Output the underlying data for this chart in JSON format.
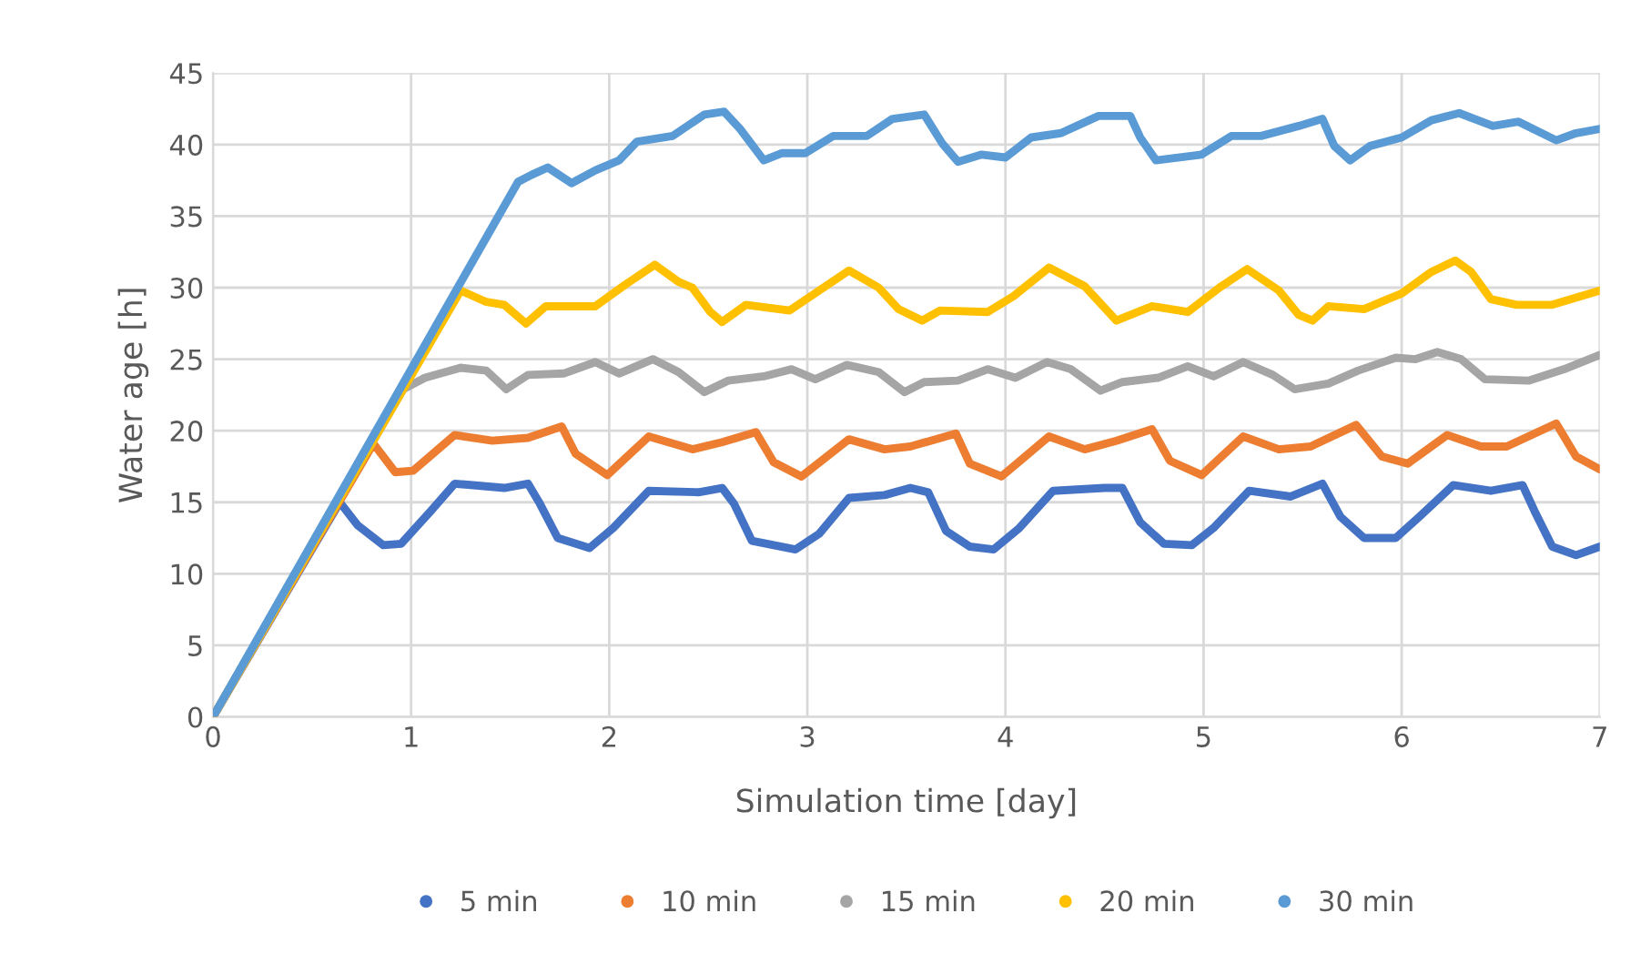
{
  "chart_data": {
    "type": "line",
    "xlabel": "Simulation time [day]",
    "ylabel": "Water age [h]",
    "xlim": [
      0,
      7
    ],
    "xticks": [
      0,
      1,
      2,
      3,
      4,
      5,
      6,
      7
    ],
    "ylim": [
      0,
      45
    ],
    "yticks": [
      0,
      5,
      10,
      15,
      20,
      25,
      30,
      35,
      40,
      45
    ],
    "grid": true,
    "legend": "bottom",
    "marker": "none",
    "line_style": "solid",
    "series": [
      {
        "name": "5 min",
        "color": "#4472c4",
        "x": [
          0,
          0.64,
          0.73,
          0.86,
          0.95,
          1.1,
          1.22,
          1.47,
          1.59,
          1.65,
          1.74,
          1.9,
          2.02,
          2.2,
          2.45,
          2.57,
          2.63,
          2.72,
          2.94,
          3.06,
          3.21,
          3.39,
          3.52,
          3.61,
          3.7,
          3.82,
          3.94,
          4.07,
          4.24,
          4.5,
          4.59,
          4.68,
          4.8,
          4.94,
          5.05,
          5.23,
          5.44,
          5.6,
          5.69,
          5.81,
          5.97,
          6.09,
          6.26,
          6.45,
          6.61,
          6.67,
          6.76,
          6.88,
          7.0
        ],
        "values": [
          0,
          15.0,
          13.4,
          12.0,
          12.1,
          14.4,
          16.3,
          16.0,
          16.3,
          14.9,
          12.5,
          11.8,
          13.2,
          15.8,
          15.7,
          16.0,
          14.9,
          12.3,
          11.7,
          12.8,
          15.3,
          15.5,
          16.0,
          15.7,
          13.0,
          11.9,
          11.7,
          13.2,
          15.8,
          16.0,
          16.0,
          13.6,
          12.1,
          12.0,
          13.2,
          15.8,
          15.4,
          16.3,
          14.0,
          12.5,
          12.5,
          14.0,
          16.2,
          15.8,
          16.2,
          14.4,
          11.9,
          11.3,
          11.9
        ]
      },
      {
        "name": "10 min",
        "color": "#ed7d31",
        "x": [
          0,
          0.81,
          0.92,
          1.01,
          1.22,
          1.41,
          1.59,
          1.76,
          1.83,
          1.99,
          2.2,
          2.42,
          2.57,
          2.74,
          2.83,
          2.97,
          3.21,
          3.39,
          3.52,
          3.75,
          3.82,
          3.98,
          4.22,
          4.4,
          4.56,
          4.74,
          4.83,
          4.99,
          5.2,
          5.38,
          5.54,
          5.77,
          5.9,
          6.03,
          6.23,
          6.4,
          6.53,
          6.78,
          6.88,
          7.0
        ],
        "values": [
          0,
          19.1,
          17.1,
          17.2,
          19.7,
          19.3,
          19.5,
          20.3,
          18.4,
          16.9,
          19.6,
          18.7,
          19.2,
          19.9,
          17.8,
          16.8,
          19.4,
          18.7,
          18.9,
          19.8,
          17.7,
          16.8,
          19.6,
          18.7,
          19.3,
          20.1,
          17.9,
          16.9,
          19.6,
          18.7,
          18.9,
          20.4,
          18.2,
          17.7,
          19.7,
          18.9,
          18.9,
          20.5,
          18.2,
          17.3
        ]
      },
      {
        "name": "15 min",
        "color": "#a5a5a5",
        "x": [
          0,
          0.96,
          1.07,
          1.25,
          1.38,
          1.48,
          1.59,
          1.77,
          1.93,
          2.05,
          2.22,
          2.35,
          2.48,
          2.6,
          2.78,
          2.92,
          3.04,
          3.2,
          3.36,
          3.49,
          3.59,
          3.76,
          3.91,
          4.05,
          4.21,
          4.33,
          4.48,
          4.59,
          4.77,
          4.92,
          5.05,
          5.2,
          5.35,
          5.46,
          5.63,
          5.78,
          5.97,
          6.07,
          6.18,
          6.3,
          6.42,
          6.64,
          6.82,
          7.0
        ],
        "values": [
          0,
          22.9,
          23.7,
          24.4,
          24.2,
          22.9,
          23.9,
          24.0,
          24.8,
          24.0,
          25.0,
          24.1,
          22.7,
          23.5,
          23.8,
          24.3,
          23.6,
          24.6,
          24.1,
          22.7,
          23.4,
          23.5,
          24.3,
          23.7,
          24.8,
          24.3,
          22.8,
          23.4,
          23.7,
          24.5,
          23.8,
          24.8,
          23.9,
          22.9,
          23.3,
          24.2,
          25.1,
          25.0,
          25.5,
          25.0,
          23.6,
          23.5,
          24.3,
          25.3
        ]
      },
      {
        "name": "20 min",
        "color": "#ffc000",
        "x": [
          0,
          1.25,
          1.38,
          1.47,
          1.58,
          1.68,
          1.93,
          2.08,
          2.23,
          2.35,
          2.42,
          2.51,
          2.57,
          2.69,
          2.91,
          3.06,
          3.21,
          3.36,
          3.46,
          3.58,
          3.67,
          3.91,
          4.04,
          4.22,
          4.4,
          4.56,
          4.74,
          4.92,
          5.08,
          5.22,
          5.38,
          5.48,
          5.55,
          5.63,
          5.81,
          6.0,
          6.15,
          6.27,
          6.35,
          6.45,
          6.58,
          6.76,
          7.0
        ],
        "values": [
          0,
          29.8,
          29.0,
          28.8,
          27.5,
          28.7,
          28.7,
          30.2,
          31.6,
          30.4,
          30.0,
          28.3,
          27.6,
          28.8,
          28.4,
          29.8,
          31.2,
          30.0,
          28.5,
          27.7,
          28.4,
          28.3,
          29.4,
          31.4,
          30.1,
          27.7,
          28.7,
          28.3,
          30.0,
          31.3,
          29.8,
          28.1,
          27.7,
          28.7,
          28.5,
          29.6,
          31.1,
          31.9,
          31.1,
          29.2,
          28.8,
          28.8,
          29.8
        ]
      },
      {
        "name": "30 min",
        "color": "#5b9bd5",
        "x": [
          0,
          1.54,
          1.61,
          1.69,
          1.81,
          1.93,
          2.05,
          2.14,
          2.32,
          2.48,
          2.58,
          2.66,
          2.78,
          2.87,
          2.99,
          3.13,
          3.3,
          3.43,
          3.59,
          3.68,
          3.76,
          3.88,
          4.0,
          4.13,
          4.28,
          4.47,
          4.63,
          4.68,
          4.76,
          4.99,
          5.14,
          5.29,
          5.48,
          5.6,
          5.66,
          5.74,
          5.84,
          6.0,
          6.15,
          6.29,
          6.46,
          6.59,
          6.78,
          6.88,
          7.0
        ],
        "values": [
          0,
          37.4,
          37.9,
          38.4,
          37.3,
          38.2,
          38.9,
          40.2,
          40.6,
          42.1,
          42.3,
          41.1,
          38.9,
          39.4,
          39.4,
          40.6,
          40.6,
          41.8,
          42.1,
          40.1,
          38.8,
          39.3,
          39.1,
          40.5,
          40.8,
          42.0,
          42.0,
          40.5,
          38.9,
          39.3,
          40.6,
          40.6,
          41.3,
          41.8,
          39.9,
          38.9,
          39.9,
          40.5,
          41.7,
          42.2,
          41.3,
          41.6,
          40.3,
          40.8,
          41.1
        ]
      }
    ]
  }
}
